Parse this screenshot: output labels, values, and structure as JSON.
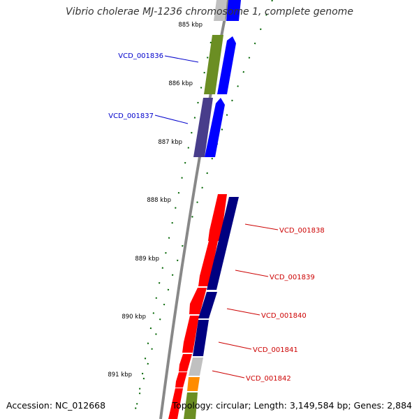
{
  "title": "Vibrio cholerae MJ-1236 chromosome 1, complete genome",
  "footer": {
    "accession": "Accession: NC_012668",
    "summary": "Topology: circular; Length: 3,149,584 bp; Genes: 2,884"
  },
  "ruler": {
    "tick_labels": [
      "885 kbp",
      "886 kbp",
      "887 kbp",
      "888 kbp",
      "889 kbp",
      "890 kbp",
      "891 kbp"
    ]
  },
  "genes": [
    {
      "name": "VCD_001836",
      "color": "#0000cc",
      "strand": "forward"
    },
    {
      "name": "VCD_001837",
      "color": "#0000cc",
      "strand": "forward"
    },
    {
      "name": "VCD_001838",
      "color": "#cc0000",
      "strand": "reverse"
    },
    {
      "name": "VCD_001839",
      "color": "#cc0000",
      "strand": "reverse"
    },
    {
      "name": "VCD_001840",
      "color": "#cc0000",
      "strand": "reverse"
    },
    {
      "name": "VCD_001841",
      "color": "#cc0000",
      "strand": "reverse"
    },
    {
      "name": "VCD_001842",
      "color": "#cc0000",
      "strand": "reverse"
    }
  ],
  "colors": {
    "forward_cds": "#0000ff",
    "reverse_cds": "#ff0000",
    "cog_dark_blue": "#000080",
    "cog_olive": "#6b8e23",
    "cog_slate": "#483d8b",
    "cog_orange": "#ff8c00",
    "cog_gray": "#c0c0c0",
    "backbone": "#808080",
    "tick_green": "#006400"
  }
}
